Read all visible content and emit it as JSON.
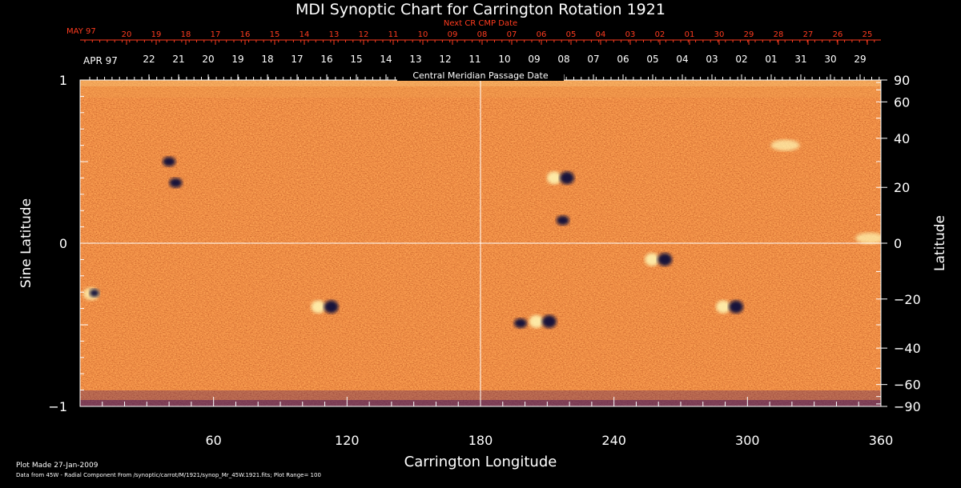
{
  "chart_data": {
    "type": "heatmap",
    "title": "MDI Synoptic Chart for Carrington Rotation 1921",
    "xlabel": "Carrington Longitude",
    "ylabel_left": "Sine Latitude",
    "ylabel_right": "Latitude",
    "xlim": [
      0,
      360
    ],
    "ylim_sine": [
      -1,
      1
    ],
    "x_ticks": [
      60,
      120,
      180,
      240,
      300,
      360
    ],
    "y_left_ticks": [
      {
        "value": 1,
        "label": "1"
      },
      {
        "value": 0,
        "label": "0"
      },
      {
        "value": -1,
        "label": "−1"
      }
    ],
    "y_right_ticks_deg": [
      90,
      60,
      40,
      20,
      0,
      -20,
      -40,
      -60,
      -90
    ],
    "gridlines": {
      "carrington_longitude": [
        180
      ],
      "sine_latitude": [
        0
      ]
    },
    "top_axis_1": {
      "title": "Next CR CMP Date",
      "month_label": "MAY 97",
      "labels": [
        "20",
        "19",
        "18",
        "17",
        "16",
        "15",
        "14",
        "13",
        "12",
        "11",
        "10",
        "09",
        "08",
        "07",
        "06",
        "05",
        "04",
        "03",
        "02",
        "01",
        "30",
        "29",
        "28",
        "27",
        "26",
        "25"
      ],
      "color": "#ff3b1f"
    },
    "top_axis_2": {
      "title": "Central Meridian Passage Date",
      "month_label": "APR 97",
      "labels": [
        "22",
        "21",
        "20",
        "19",
        "18",
        "17",
        "16",
        "15",
        "14",
        "13",
        "12",
        "11",
        "10",
        "09",
        "08",
        "07",
        "06",
        "05",
        "04",
        "03",
        "02",
        "01",
        "31",
        "30",
        "29"
      ],
      "color": "#ffffff"
    },
    "features": [
      {
        "lon": 5,
        "sinlat": -0.31,
        "polarity": "mixed"
      },
      {
        "lon": 40,
        "sinlat": 0.5,
        "polarity": "negative"
      },
      {
        "lon": 43,
        "sinlat": 0.37,
        "polarity": "negative"
      },
      {
        "lon": 110,
        "sinlat": -0.39,
        "polarity": "bipolar"
      },
      {
        "lon": 198,
        "sinlat": -0.49,
        "polarity": "negative"
      },
      {
        "lon": 208,
        "sinlat": -0.48,
        "polarity": "bipolar"
      },
      {
        "lon": 216,
        "sinlat": 0.4,
        "polarity": "bipolar"
      },
      {
        "lon": 217,
        "sinlat": 0.14,
        "polarity": "negative"
      },
      {
        "lon": 260,
        "sinlat": -0.1,
        "polarity": "bipolar"
      },
      {
        "lon": 292,
        "sinlat": -0.39,
        "polarity": "bipolar"
      },
      {
        "lon": 317,
        "sinlat": 0.6,
        "polarity": "positive"
      },
      {
        "lon": 355,
        "sinlat": 0.03,
        "polarity": "positive"
      }
    ],
    "colors": {
      "background": "#000000",
      "map_base": "#d8451b",
      "positive_field": "#fff3b0",
      "negative_field": "#0a0a3a",
      "axis": "#ffffff",
      "next_cr_axis": "#ff3b1f"
    }
  },
  "footer": {
    "line1": "Plot Made 27-Jan-2009",
    "line2": "Data from 45W - Radial Component From /synoptic/carrot/M/1921/synop_Mr_45W.1921.fits; Plot Range= 100"
  }
}
